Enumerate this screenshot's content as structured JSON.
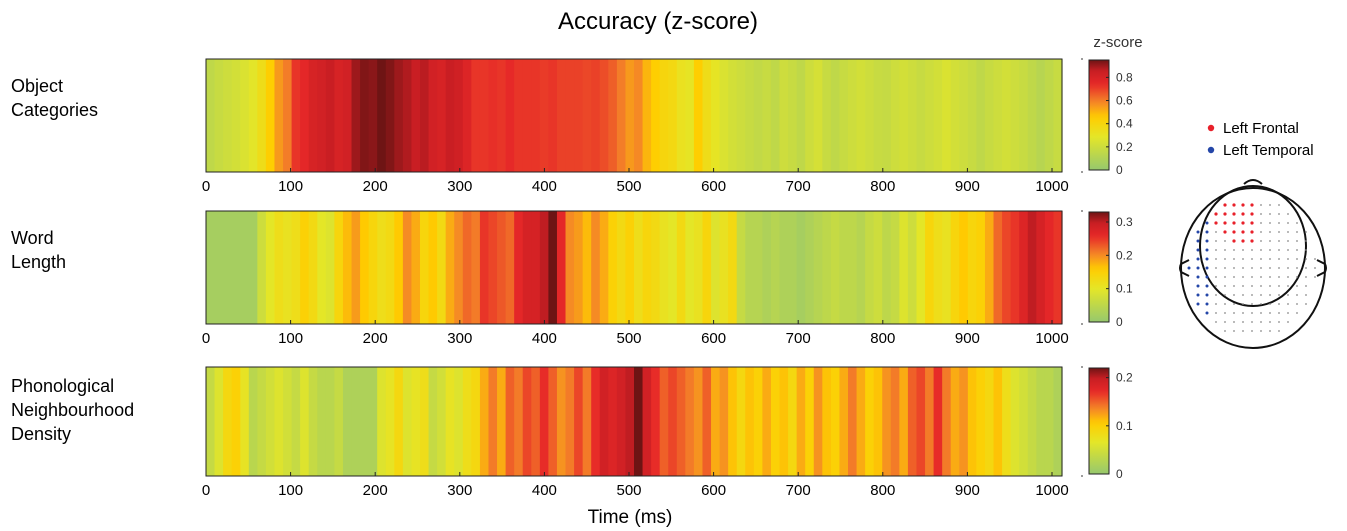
{
  "title": "Accuracy (z-score)",
  "xlabel": "Time (ms)",
  "colorbar_title": "z-score",
  "chart_data": [
    {
      "type": "heatmap",
      "label": "Object Categories",
      "label_lines": [
        "Object",
        "Categories"
      ],
      "x_ticks": [
        0,
        100,
        200,
        300,
        400,
        500,
        600,
        700,
        800,
        900,
        1000
      ],
      "xlim": [
        0,
        1000
      ],
      "colorbar": {
        "range": [
          0,
          0.95
        ],
        "ticks": [
          0,
          0.2,
          0.4,
          0.6,
          0.8
        ],
        "tick_labels": [
          "0",
          "0.2",
          "0.4",
          "0.6",
          "0.8"
        ]
      },
      "bin_width_ms": 10,
      "values": [
        0.15,
        0.18,
        0.2,
        0.22,
        0.25,
        0.28,
        0.35,
        0.45,
        0.55,
        0.6,
        0.72,
        0.75,
        0.8,
        0.82,
        0.85,
        0.8,
        0.82,
        0.9,
        0.93,
        0.92,
        0.95,
        0.93,
        0.9,
        0.88,
        0.85,
        0.87,
        0.82,
        0.8,
        0.85,
        0.83,
        0.78,
        0.72,
        0.72,
        0.73,
        0.72,
        0.74,
        0.72,
        0.72,
        0.72,
        0.71,
        0.72,
        0.7,
        0.7,
        0.7,
        0.69,
        0.7,
        0.68,
        0.65,
        0.6,
        0.55,
        0.58,
        0.5,
        0.45,
        0.4,
        0.38,
        0.32,
        0.3,
        0.45,
        0.35,
        0.3,
        0.25,
        0.22,
        0.2,
        0.18,
        0.16,
        0.18,
        0.15,
        0.2,
        0.18,
        0.15,
        0.2,
        0.23,
        0.18,
        0.15,
        0.18,
        0.2,
        0.22,
        0.2,
        0.18,
        0.17,
        0.2,
        0.22,
        0.2,
        0.18,
        0.2,
        0.22,
        0.25,
        0.22,
        0.2,
        0.18,
        0.15,
        0.18,
        0.2,
        0.22,
        0.2,
        0.18,
        0.15,
        0.12,
        0.15,
        0.18
      ]
    },
    {
      "type": "heatmap",
      "label": "Word Length",
      "label_lines": [
        "Word",
        "Length"
      ],
      "x_ticks": [
        0,
        100,
        200,
        300,
        400,
        500,
        600,
        700,
        800,
        900,
        1000
      ],
      "xlim": [
        0,
        1000
      ],
      "colorbar": {
        "range": [
          0,
          0.33
        ],
        "ticks": [
          0,
          0.1,
          0.2,
          0.3
        ],
        "tick_labels": [
          "0",
          "0.1",
          "0.2",
          "0.3"
        ]
      },
      "bin_width_ms": 10,
      "values": [
        0.02,
        0.02,
        0.02,
        0.02,
        0.02,
        0.02,
        0.07,
        0.1,
        0.12,
        0.11,
        0.12,
        0.15,
        0.13,
        0.1,
        0.09,
        0.14,
        0.17,
        0.19,
        0.16,
        0.14,
        0.12,
        0.13,
        0.16,
        0.2,
        0.18,
        0.14,
        0.16,
        0.13,
        0.18,
        0.2,
        0.22,
        0.21,
        0.25,
        0.24,
        0.23,
        0.22,
        0.26,
        0.28,
        0.28,
        0.3,
        0.33,
        0.26,
        0.2,
        0.19,
        0.17,
        0.2,
        0.18,
        0.15,
        0.13,
        0.15,
        0.12,
        0.14,
        0.13,
        0.11,
        0.1,
        0.13,
        0.1,
        0.11,
        0.14,
        0.09,
        0.11,
        0.13,
        0.06,
        0.04,
        0.04,
        0.03,
        0.04,
        0.03,
        0.03,
        0.02,
        0.03,
        0.04,
        0.05,
        0.06,
        0.05,
        0.05,
        0.04,
        0.06,
        0.07,
        0.05,
        0.06,
        0.09,
        0.07,
        0.1,
        0.14,
        0.12,
        0.11,
        0.14,
        0.16,
        0.14,
        0.15,
        0.18,
        0.22,
        0.24,
        0.25,
        0.27,
        0.3,
        0.28,
        0.26,
        0.25
      ]
    },
    {
      "type": "heatmap",
      "label": "Phonological Neighbourhood Density",
      "label_lines": [
        "Phonological",
        "Neighbourhood",
        "Density"
      ],
      "x_ticks": [
        0,
        100,
        200,
        300,
        400,
        500,
        600,
        700,
        800,
        900,
        1000
      ],
      "xlim": [
        0,
        1000
      ],
      "colorbar": {
        "range": [
          0,
          0.22
        ],
        "ticks": [
          0,
          0.1,
          0.2
        ],
        "tick_labels": [
          "0",
          "0.1",
          "0.2"
        ]
      },
      "bin_width_ms": 10,
      "values": [
        0.04,
        0.06,
        0.09,
        0.1,
        0.07,
        0.03,
        0.04,
        0.05,
        0.06,
        0.05,
        0.04,
        0.06,
        0.04,
        0.03,
        0.03,
        0.04,
        0.02,
        0.02,
        0.02,
        0.02,
        0.06,
        0.07,
        0.09,
        0.06,
        0.07,
        0.08,
        0.04,
        0.05,
        0.07,
        0.06,
        0.08,
        0.09,
        0.12,
        0.14,
        0.12,
        0.15,
        0.14,
        0.16,
        0.15,
        0.17,
        0.15,
        0.13,
        0.14,
        0.16,
        0.14,
        0.17,
        0.19,
        0.18,
        0.19,
        0.2,
        0.22,
        0.19,
        0.17,
        0.15,
        0.16,
        0.15,
        0.14,
        0.13,
        0.15,
        0.12,
        0.13,
        0.11,
        0.09,
        0.11,
        0.1,
        0.12,
        0.1,
        0.11,
        0.09,
        0.12,
        0.1,
        0.13,
        0.11,
        0.1,
        0.12,
        0.14,
        0.12,
        0.1,
        0.11,
        0.13,
        0.14,
        0.12,
        0.15,
        0.16,
        0.14,
        0.17,
        0.14,
        0.12,
        0.13,
        0.11,
        0.1,
        0.09,
        0.11,
        0.08,
        0.06,
        0.05,
        0.04,
        0.03,
        0.03,
        0.02
      ]
    }
  ],
  "sensor_map": {
    "legend": [
      {
        "label": "Left Frontal",
        "color": "#e8202a"
      },
      {
        "label": "Left Temporal",
        "color": "#2446a8"
      }
    ],
    "other_sensor_color": "#8a8a8a",
    "head_icon": "head-topography-icon"
  }
}
